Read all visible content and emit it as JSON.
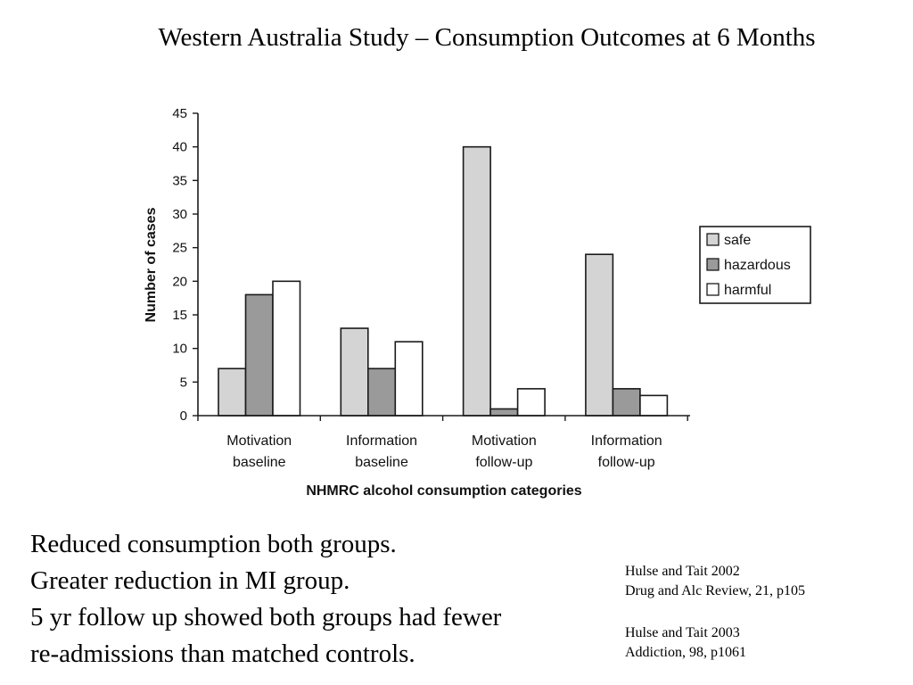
{
  "slide": {
    "title": "Western Australia Study – Consumption Outcomes at 6 Months",
    "summary_lines": [
      "Reduced consumption both groups.",
      "Greater reduction in MI group.",
      "5 yr follow up showed both groups had fewer",
      "re-admissions than matched controls."
    ],
    "references": [
      {
        "line1": "Hulse and Tait 2002",
        "line2": "Drug and Alc Review, 21, p105"
      },
      {
        "line1": "Hulse and Tait 2003",
        "line2": "Addiction, 98, p1061"
      }
    ]
  },
  "chart_data": {
    "type": "bar",
    "categories": [
      [
        "Motivation",
        "baseline"
      ],
      [
        "Information",
        "baseline"
      ],
      [
        "Motivation",
        "follow-up"
      ],
      [
        "Information",
        "follow-up"
      ]
    ],
    "series": [
      {
        "name": "safe",
        "values": [
          7,
          13,
          40,
          24
        ],
        "color": "#d4d4d4"
      },
      {
        "name": "hazardous",
        "values": [
          18,
          7,
          1,
          4
        ],
        "color": "#9a9a9a"
      },
      {
        "name": "harmful",
        "values": [
          20,
          11,
          4,
          3
        ],
        "color": "#ffffff"
      }
    ],
    "xlabel": "NHMRC alcohol consumption categories",
    "ylabel": "Number of cases",
    "ylim": [
      0,
      45
    ],
    "yticks": [
      0,
      5,
      10,
      15,
      20,
      25,
      30,
      35,
      40,
      45
    ],
    "legend_position": "right",
    "grid": false
  }
}
